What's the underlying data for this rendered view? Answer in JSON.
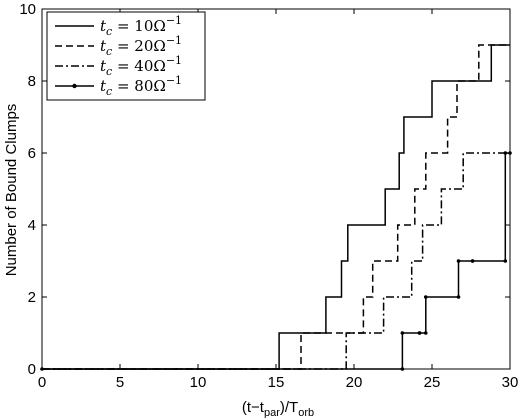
{
  "chart_data": {
    "type": "line",
    "title": "",
    "xlabel": "(t−t",
    "xlabel_sub1": "par",
    "xlabel_mid": ")/T",
    "xlabel_sub2": "orb",
    "ylabel": "Number of Bound Clumps",
    "xlim": [
      0,
      30
    ],
    "ylim": [
      0,
      10
    ],
    "xticks": [
      "0",
      "5",
      "10",
      "15",
      "20",
      "25",
      "30"
    ],
    "yticks": [
      "0",
      "2",
      "4",
      "6",
      "8",
      "10"
    ],
    "grid": false,
    "legend_position": "top-left",
    "series": [
      {
        "name": "t_c = 10Ω^-1",
        "legend_base": "t",
        "legend_sub": "c",
        "legend_eq": " = 10Ω",
        "legend_sup": "−1",
        "style": "solid",
        "x": [
          0,
          15.2,
          15.2,
          18.2,
          18.2,
          19.2,
          19.2,
          19.6,
          19.6,
          22.0,
          22.0,
          22.9,
          22.9,
          23.2,
          23.2,
          25.0,
          25.0,
          26.5,
          26.5,
          27.0,
          27.0,
          28.8,
          28.8,
          30.0
        ],
        "y": [
          0,
          0,
          1,
          1,
          2,
          2,
          3,
          3,
          4,
          4,
          5,
          5,
          6,
          6,
          7,
          7,
          8,
          8,
          8,
          8,
          8,
          8,
          9,
          9
        ]
      },
      {
        "name": "t_c = 20Ω^-1",
        "legend_base": "t",
        "legend_sub": "c",
        "legend_eq": " = 20Ω",
        "legend_sup": "−1",
        "style": "dashed",
        "x": [
          0,
          16.6,
          16.6,
          19.8,
          19.8,
          20.6,
          20.6,
          21.2,
          21.2,
          22.8,
          22.8,
          23.9,
          23.9,
          24.6,
          24.6,
          25.3,
          25.3,
          26.0,
          26.0,
          26.6,
          26.6,
          27.5,
          27.5,
          28.0,
          28.0,
          29.0,
          29.0,
          30.0
        ],
        "y": [
          0,
          0,
          1,
          1,
          1,
          1,
          2,
          2,
          3,
          3,
          4,
          4,
          5,
          5,
          6,
          6,
          6,
          6,
          7,
          7,
          8,
          8,
          8,
          8,
          9,
          9,
          9,
          9
        ]
      },
      {
        "name": "t_c = 40Ω^-1",
        "legend_base": "t",
        "legend_sub": "c",
        "legend_eq": " = 40Ω",
        "legend_sup": "−1",
        "style": "dashdot",
        "x": [
          0,
          19.5,
          19.5,
          21.9,
          21.9,
          22.6,
          22.6,
          23.7,
          23.7,
          24.4,
          24.4,
          25.6,
          25.6,
          27.0,
          27.0,
          28.4,
          28.4,
          30.0
        ],
        "y": [
          0,
          0,
          1,
          1,
          2,
          2,
          2,
          2,
          3,
          3,
          4,
          4,
          5,
          5,
          6,
          6,
          6,
          6
        ]
      },
      {
        "name": "t_c = 80Ω^-1",
        "legend_base": "t",
        "legend_sub": "c",
        "legend_eq": " = 80Ω",
        "legend_sup": "−1",
        "style": "solid-dots",
        "x": [
          0,
          23.1,
          23.1,
          24.2,
          24.2,
          24.6,
          24.6,
          26.7,
          26.7,
          27.6,
          27.6,
          29.7,
          29.7,
          30.0
        ],
        "y": [
          0,
          0,
          1,
          1,
          1,
          1,
          2,
          2,
          3,
          3,
          3,
          3,
          6,
          6
        ]
      }
    ]
  }
}
